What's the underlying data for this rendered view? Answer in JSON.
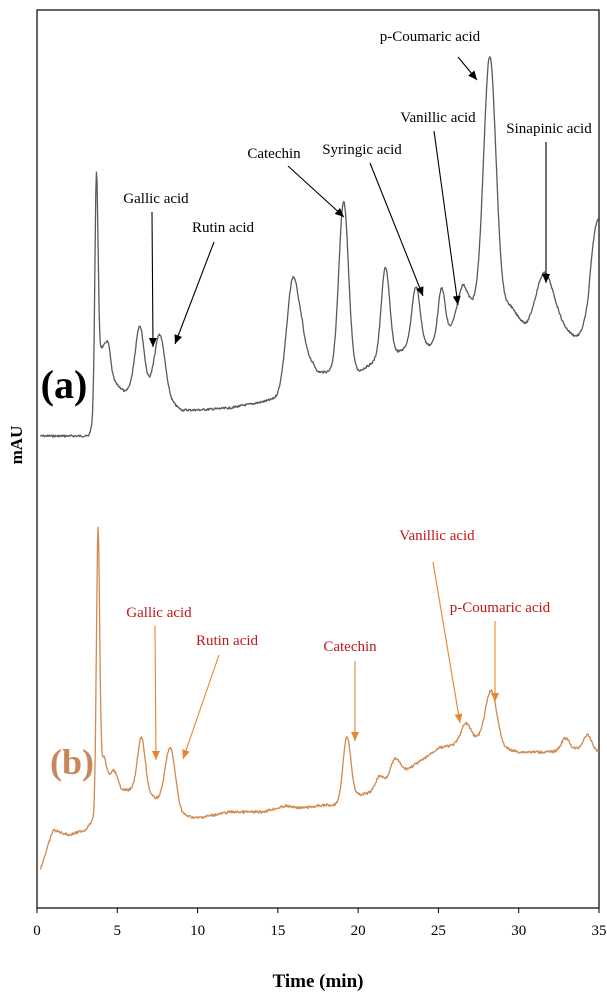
{
  "chart_data": {
    "type": "line",
    "xlabel": "Time (min)",
    "ylabel": "mAU",
    "xlim": [
      0,
      35
    ],
    "xticks": [
      0,
      5,
      10,
      15,
      20,
      25,
      30,
      35
    ],
    "grid": false,
    "colors": {
      "a": "#5a5a5a",
      "b": "#d08a52",
      "b_label": "#c01818",
      "b_arrow": "#e8862f",
      "b_letter": "#c8875a",
      "a_text": "#000000"
    },
    "series": [
      {
        "name": "(a)",
        "peaks": [
          {
            "t": 3.7,
            "h": 225,
            "w": 0.1
          },
          {
            "t": 3.95,
            "h": 45,
            "w": 0.18
          },
          {
            "t": 4.35,
            "h": 40,
            "w": 0.2
          },
          {
            "t": 6.4,
            "h": 60,
            "w": 0.26
          },
          {
            "t": 7.65,
            "h": 60,
            "w": 0.32
          },
          {
            "t": 15.9,
            "h": 95,
            "w": 0.38
          },
          {
            "t": 19.1,
            "h": 170,
            "w": 0.3
          },
          {
            "t": 21.7,
            "h": 90,
            "w": 0.26
          },
          {
            "t": 23.6,
            "h": 60,
            "w": 0.26
          },
          {
            "t": 25.2,
            "h": 50,
            "w": 0.22
          },
          {
            "t": 26.5,
            "h": 25,
            "w": 0.3
          },
          {
            "t": 28.2,
            "h": 250,
            "w": 0.38
          },
          {
            "t": 31.6,
            "h": 55,
            "w": 0.55
          },
          {
            "t": 34.8,
            "h": 80,
            "w": 0.45
          }
        ],
        "labels": [
          {
            "text": "Gallic acid",
            "peak_t": 6.4
          },
          {
            "text": "Rutin acid",
            "peak_t": 7.65
          },
          {
            "text": "Catechin",
            "peak_t": 19.1
          },
          {
            "text": "Syringic acid",
            "peak_t": 23.6
          },
          {
            "text": "Vanillic acid",
            "peak_t": 25.8
          },
          {
            "text": "p-Coumaric acid",
            "peak_t": 28.2
          },
          {
            "text": "Sinapinic acid",
            "peak_t": 31.6
          }
        ]
      },
      {
        "name": "(b)",
        "peaks": [
          {
            "t": 3.8,
            "h": 265,
            "w": 0.1
          },
          {
            "t": 4.1,
            "h": 30,
            "w": 0.22
          },
          {
            "t": 4.8,
            "h": 18,
            "w": 0.22
          },
          {
            "t": 6.5,
            "h": 55,
            "w": 0.24
          },
          {
            "t": 8.3,
            "h": 60,
            "w": 0.32
          },
          {
            "t": 19.3,
            "h": 65,
            "w": 0.25
          },
          {
            "t": 21.3,
            "h": 12,
            "w": 0.25
          },
          {
            "t": 22.3,
            "h": 18,
            "w": 0.3
          },
          {
            "t": 26.7,
            "h": 18,
            "w": 0.3
          },
          {
            "t": 28.3,
            "h": 50,
            "w": 0.35
          },
          {
            "t": 32.9,
            "h": 12,
            "w": 0.25
          },
          {
            "t": 34.3,
            "h": 14,
            "w": 0.25
          }
        ],
        "labels": [
          {
            "text": "Gallic acid",
            "peak_t": 6.5
          },
          {
            "text": "Rutin acid",
            "peak_t": 8.3
          },
          {
            "text": "Catechin",
            "peak_t": 19.3
          },
          {
            "text": "Vanillic acid",
            "peak_t": 26.0
          },
          {
            "text": "p-Coumaric acid",
            "peak_t": 28.3
          }
        ]
      }
    ]
  }
}
